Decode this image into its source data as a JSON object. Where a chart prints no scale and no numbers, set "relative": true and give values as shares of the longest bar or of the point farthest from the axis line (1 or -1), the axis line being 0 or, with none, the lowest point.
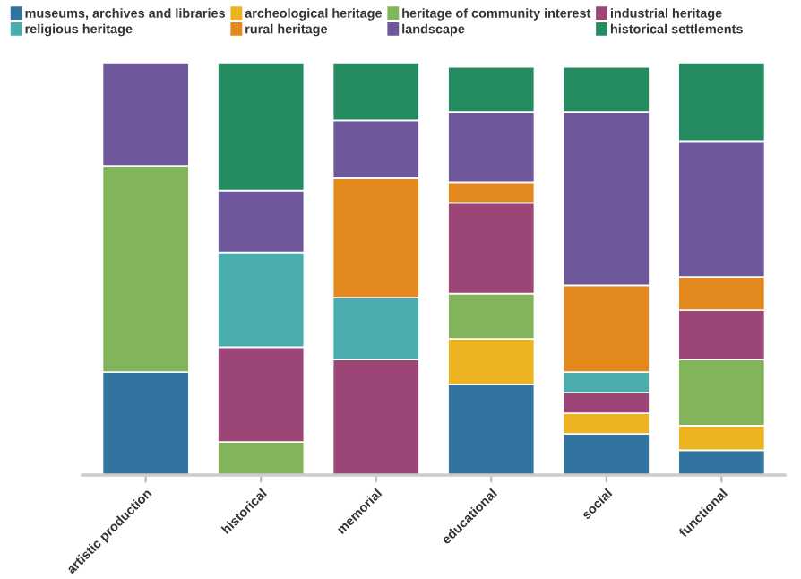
{
  "chart_data": {
    "type": "bar",
    "stacked": true,
    "relative": true,
    "legend": "top",
    "grid": false,
    "categories": [
      "artistic production",
      "historical",
      "memorial",
      "educational",
      "social",
      "functional"
    ],
    "series": [
      {
        "name": "museums, archives and libraries",
        "color": "#31749f",
        "values": [
          0.25,
          0,
          0,
          0.22,
          0.1,
          0.06
        ]
      },
      {
        "name": "archeological heritage",
        "color": "#edb320",
        "values": [
          0,
          0,
          0,
          0.11,
          0.05,
          0.06
        ]
      },
      {
        "name": "heritage of community interest",
        "color": "#82b55a",
        "values": [
          0.5,
          0.08,
          0,
          0.11,
          0,
          0.16
        ]
      },
      {
        "name": "industrial heritage",
        "color": "#9b4676",
        "values": [
          0,
          0.23,
          0.28,
          0.22,
          0.05,
          0.12
        ]
      },
      {
        "name": "religious heritage",
        "color": "#4aacad",
        "values": [
          0,
          0.23,
          0.15,
          0,
          0.05,
          0
        ]
      },
      {
        "name": "rural heritage",
        "color": "#e3891d",
        "values": [
          0,
          0,
          0.29,
          0.05,
          0.21,
          0.08
        ]
      },
      {
        "name": "landscape",
        "color": "#6f579b",
        "values": [
          0.25,
          0.15,
          0.14,
          0.17,
          0.42,
          0.33
        ]
      },
      {
        "name": "historical settlements",
        "color": "#258c62",
        "values": [
          0,
          0.31,
          0.14,
          0.11,
          0.11,
          0.19
        ]
      }
    ]
  }
}
